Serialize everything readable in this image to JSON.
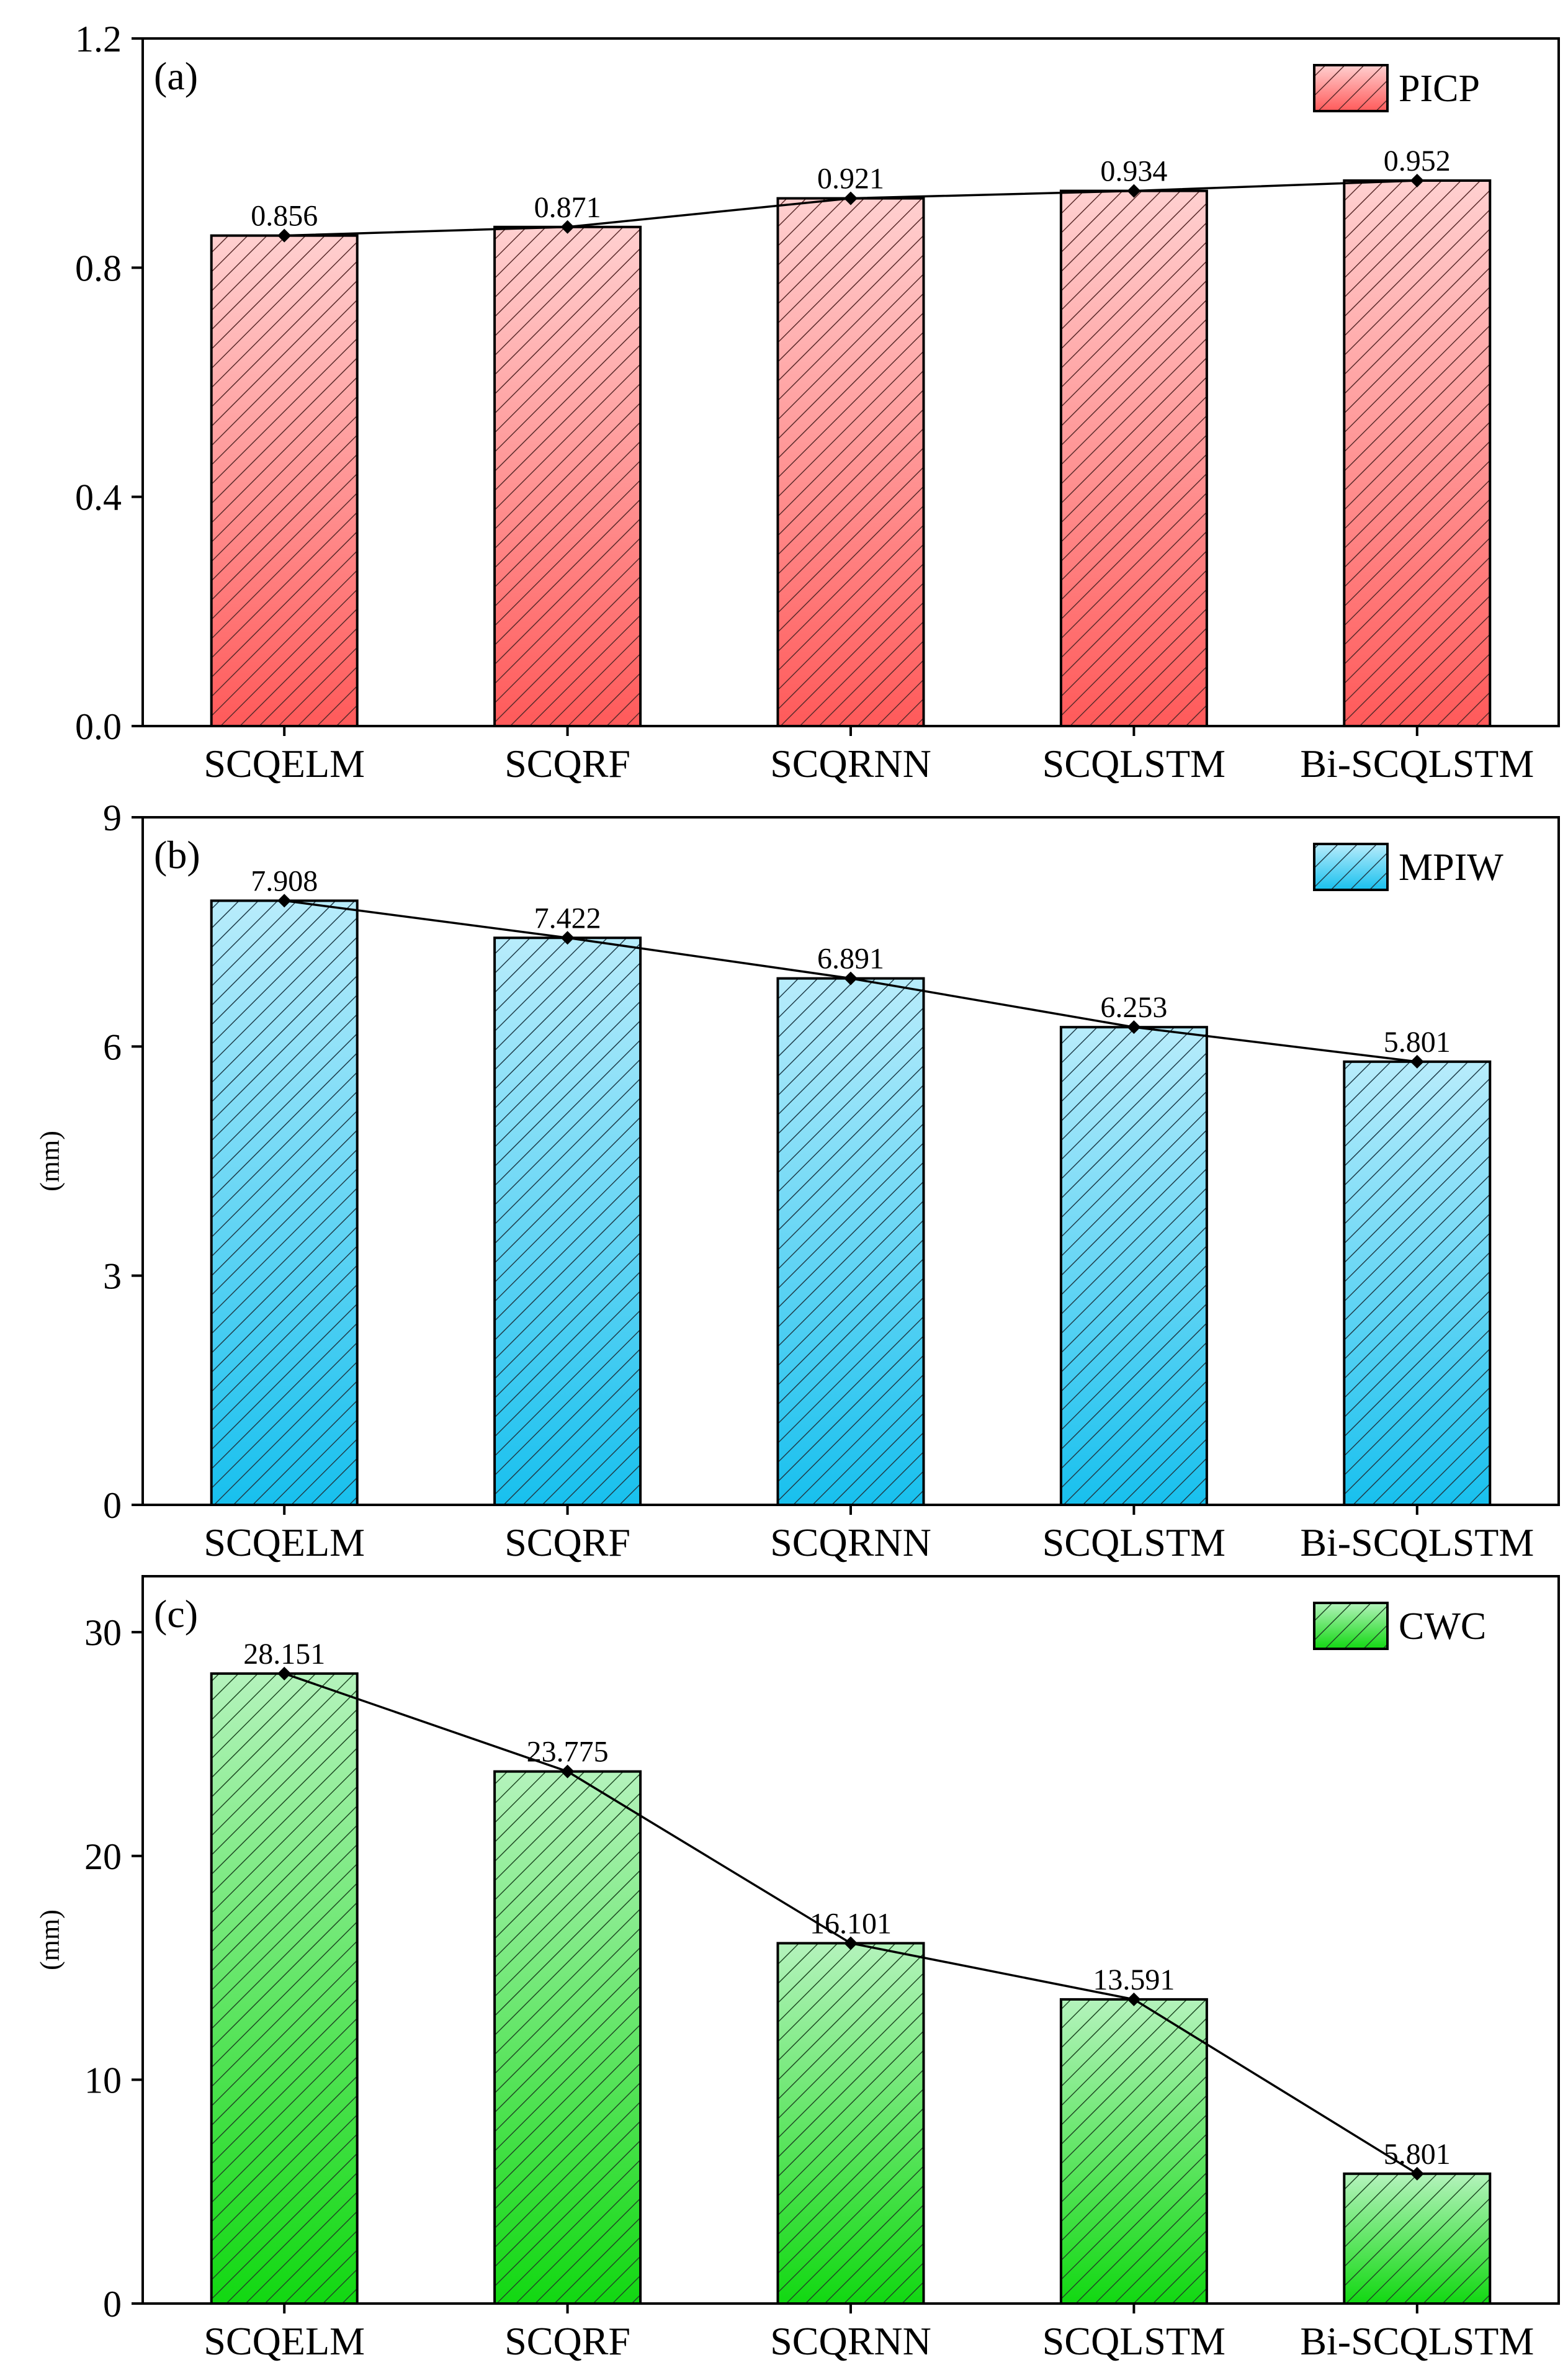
{
  "chart_data": [
    {
      "type": "bar",
      "panel_label": "(a)",
      "categories": [
        "SCQELM",
        "SCQRF",
        "SCQRNN",
        "SCQLSTM",
        "Bi-SCQLSTM"
      ],
      "series": [
        {
          "name": "PICP",
          "values": [
            0.856,
            0.871,
            0.921,
            0.934,
            0.952
          ]
        }
      ],
      "value_labels": [
        "0.856",
        "0.871",
        "0.921",
        "0.934",
        "0.952"
      ],
      "legend": "PICP",
      "legend_position": "top-right",
      "ylabel": "",
      "ylim": [
        0,
        1.2
      ],
      "yticks": [
        0.0,
        0.4,
        0.8,
        1.2
      ],
      "ytick_labels": [
        "0.0",
        "0.4",
        "0.8",
        "1.2"
      ],
      "overlay_line": true,
      "colors": {
        "top": "#ffd0d0",
        "bottom": "#ff5a5a",
        "hatch": "#5a2a2a"
      }
    },
    {
      "type": "bar",
      "panel_label": "(b)",
      "categories": [
        "SCQELM",
        "SCQRF",
        "SCQRNN",
        "SCQLSTM",
        "Bi-SCQLSTM"
      ],
      "series": [
        {
          "name": "MPIW",
          "values": [
            7.908,
            7.422,
            6.891,
            6.253,
            5.801
          ]
        }
      ],
      "value_labels": [
        "7.908",
        "7.422",
        "6.891",
        "6.253",
        "5.801"
      ],
      "legend": "MPIW",
      "legend_position": "top-right",
      "ylabel": "(mm)",
      "ylim": [
        0,
        9
      ],
      "yticks": [
        0,
        3,
        6,
        9
      ],
      "ytick_labels": [
        "0",
        "3",
        "6",
        "9"
      ],
      "overlay_line": true,
      "colors": {
        "top": "#b8ecfb",
        "bottom": "#18c0ee",
        "hatch": "#1f3d4a"
      }
    },
    {
      "type": "bar",
      "panel_label": "(c)",
      "categories": [
        "SCQELM",
        "SCQRF",
        "SCQRNN",
        "SCQLSTM",
        "Bi-SCQLSTM"
      ],
      "series": [
        {
          "name": "CWC",
          "values": [
            28.151,
            23.775,
            16.101,
            13.591,
            5.801
          ]
        }
      ],
      "value_labels": [
        "28.151",
        "23.775",
        "16.101",
        "13.591",
        "5.801"
      ],
      "legend": "CWC",
      "legend_position": "top-right",
      "ylabel": "(mm)",
      "ylim": [
        0,
        32.5
      ],
      "yticks": [
        0,
        10,
        20,
        30
      ],
      "ytick_labels": [
        "0",
        "10",
        "20",
        "30"
      ],
      "overlay_line": true,
      "colors": {
        "top": "#b4f3bc",
        "bottom": "#12d812",
        "hatch": "#1f4a24"
      }
    }
  ]
}
